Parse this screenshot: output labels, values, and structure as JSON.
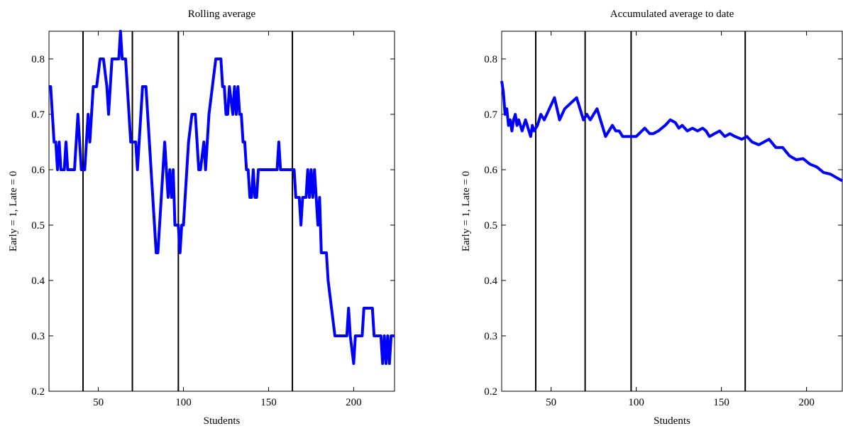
{
  "chart_data": [
    {
      "type": "line",
      "title": "Rolling average",
      "xlabel": "Students",
      "ylabel": "Early = 1, Late = 0",
      "color": "#0000ff",
      "xlim": [
        21,
        224
      ],
      "ylim": [
        0.2,
        0.85
      ],
      "xticks": [
        50,
        100,
        150,
        200
      ],
      "yticks": [
        0.2,
        0.3,
        0.4,
        0.5,
        0.6,
        0.7,
        0.8
      ],
      "vlines": [
        41,
        70,
        97,
        164
      ],
      "x": [
        21,
        22,
        24,
        25,
        26,
        27,
        28,
        30,
        31,
        32,
        36,
        38,
        39,
        40,
        42,
        43,
        44,
        45,
        46,
        47,
        49,
        51,
        53,
        55,
        56,
        57,
        58,
        62,
        63,
        64,
        66,
        67,
        68,
        69,
        72,
        73,
        74,
        76,
        78,
        80,
        82,
        84,
        85,
        86,
        88,
        89,
        90,
        91,
        92,
        93,
        94,
        95,
        97,
        98,
        99,
        100,
        103,
        105,
        107,
        108,
        109,
        110,
        112,
        113,
        115,
        117,
        119,
        122,
        123,
        124,
        125,
        126,
        127,
        129,
        130,
        131,
        132,
        133,
        134,
        135,
        136,
        137,
        138,
        139,
        140,
        141,
        142,
        143,
        144,
        155,
        156,
        157,
        165,
        166,
        168,
        169,
        170,
        172,
        173,
        174,
        175,
        176,
        177,
        178,
        179,
        180,
        181,
        184,
        185,
        187,
        189,
        196,
        197,
        198,
        200,
        201,
        205,
        206,
        211,
        212,
        216,
        217,
        218,
        219,
        220,
        221,
        222,
        224
      ],
      "values": [
        0.75,
        0.75,
        0.65,
        0.65,
        0.6,
        0.65,
        0.6,
        0.6,
        0.65,
        0.6,
        0.6,
        0.7,
        0.65,
        0.6,
        0.6,
        0.65,
        0.7,
        0.65,
        0.7,
        0.75,
        0.75,
        0.8,
        0.8,
        0.75,
        0.7,
        0.75,
        0.8,
        0.8,
        0.85,
        0.8,
        0.8,
        0.75,
        0.7,
        0.65,
        0.65,
        0.6,
        0.65,
        0.75,
        0.75,
        0.65,
        0.55,
        0.45,
        0.45,
        0.5,
        0.6,
        0.65,
        0.6,
        0.55,
        0.6,
        0.55,
        0.6,
        0.5,
        0.5,
        0.45,
        0.5,
        0.5,
        0.65,
        0.7,
        0.7,
        0.65,
        0.6,
        0.6,
        0.65,
        0.6,
        0.7,
        0.75,
        0.8,
        0.8,
        0.75,
        0.75,
        0.7,
        0.7,
        0.75,
        0.7,
        0.75,
        0.7,
        0.75,
        0.7,
        0.7,
        0.65,
        0.65,
        0.6,
        0.6,
        0.55,
        0.55,
        0.6,
        0.55,
        0.55,
        0.6,
        0.6,
        0.65,
        0.6,
        0.6,
        0.55,
        0.55,
        0.5,
        0.55,
        0.55,
        0.6,
        0.55,
        0.6,
        0.55,
        0.6,
        0.55,
        0.5,
        0.55,
        0.45,
        0.45,
        0.4,
        0.35,
        0.3,
        0.3,
        0.35,
        0.3,
        0.25,
        0.3,
        0.3,
        0.35,
        0.35,
        0.3,
        0.3,
        0.25,
        0.3,
        0.25,
        0.3,
        0.25,
        0.3,
        0.3
      ]
    },
    {
      "type": "line",
      "title": "Accumulated average to date",
      "xlabel": "Students",
      "ylabel": "Early = 1, Late = 0",
      "color": "#0000ff",
      "xlim": [
        21,
        221
      ],
      "ylim": [
        0.2,
        0.85
      ],
      "xticks": [
        50,
        100,
        150,
        200
      ],
      "yticks": [
        0.2,
        0.3,
        0.4,
        0.5,
        0.6,
        0.7,
        0.8
      ],
      "vlines": [
        41,
        70,
        97,
        164
      ],
      "x": [
        21,
        22,
        23,
        24,
        25,
        26,
        27,
        28,
        29,
        30,
        31,
        33,
        35,
        36,
        38,
        39,
        40,
        42,
        44,
        46,
        52,
        55,
        58,
        65,
        69,
        71,
        73,
        77,
        82,
        86,
        88,
        90,
        92,
        95,
        97,
        100,
        105,
        108,
        110,
        113,
        117,
        120,
        123,
        125,
        127,
        130,
        133,
        136,
        139,
        141,
        143,
        146,
        149,
        152,
        155,
        158,
        162,
        165,
        168,
        172,
        178,
        182,
        186,
        190,
        194,
        198,
        202,
        206,
        210,
        214,
        218,
        221
      ],
      "values": [
        0.76,
        0.74,
        0.7,
        0.71,
        0.68,
        0.69,
        0.67,
        0.69,
        0.7,
        0.68,
        0.69,
        0.67,
        0.69,
        0.68,
        0.66,
        0.68,
        0.67,
        0.68,
        0.7,
        0.69,
        0.73,
        0.69,
        0.71,
        0.73,
        0.69,
        0.7,
        0.69,
        0.71,
        0.66,
        0.68,
        0.67,
        0.67,
        0.66,
        0.66,
        0.66,
        0.66,
        0.675,
        0.665,
        0.665,
        0.67,
        0.68,
        0.69,
        0.685,
        0.675,
        0.68,
        0.67,
        0.675,
        0.67,
        0.675,
        0.67,
        0.66,
        0.665,
        0.67,
        0.66,
        0.665,
        0.66,
        0.655,
        0.66,
        0.65,
        0.645,
        0.655,
        0.64,
        0.64,
        0.625,
        0.618,
        0.62,
        0.61,
        0.605,
        0.595,
        0.592,
        0.585,
        0.58
      ]
    }
  ]
}
